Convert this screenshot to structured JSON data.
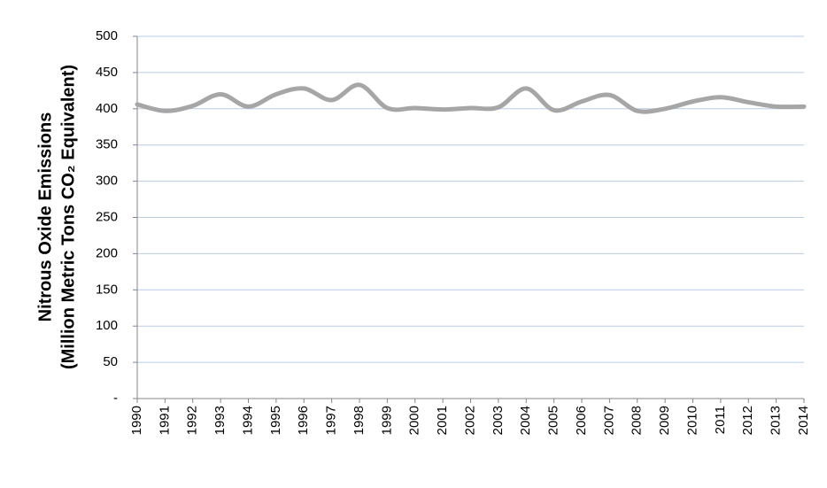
{
  "chart_data": {
    "type": "line",
    "y_label": [
      "Nitrous Oxide Emissions",
      "(Million Metric Tons CO₂ Equivalent)"
    ],
    "categories": [
      "1990",
      "1991",
      "1992",
      "1993",
      "1994",
      "1995",
      "1996",
      "1997",
      "1998",
      "1999",
      "2000",
      "2001",
      "2002",
      "2003",
      "2004",
      "2005",
      "2006",
      "2007",
      "2008",
      "2009",
      "2010",
      "2011",
      "2012",
      "2013",
      "2014"
    ],
    "series": [
      {
        "color": "#a6a6a6",
        "values": [
          406,
          397,
          404,
          420,
          403,
          420,
          428,
          412,
          433,
          401,
          401,
          399,
          401,
          402,
          428,
          398,
          410,
          419,
          397,
          400,
          410,
          416,
          409,
          403,
          403
        ]
      }
    ],
    "ylim": [
      0,
      500
    ],
    "yticks": [
      {
        "value": 0,
        "label": "-"
      },
      50,
      100,
      150,
      200,
      250,
      300,
      350,
      400,
      450,
      500
    ],
    "grid": true
  }
}
